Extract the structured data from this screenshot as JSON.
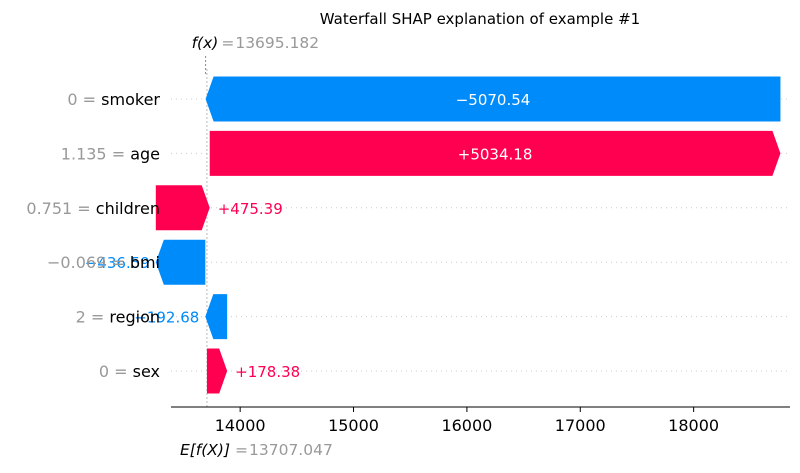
{
  "chart_data": {
    "type": "waterfall",
    "title": "Waterfall SHAP explanation of example #1",
    "fx_label": "f(x)",
    "fx_value": "13695.182",
    "base_label": "E[f(X)]",
    "base_value": "13707.047",
    "base": 13707.047,
    "output": 13695.182,
    "xlim": [
      13390,
      18850
    ],
    "xticks": [
      14000,
      15000,
      16000,
      17000,
      18000
    ],
    "xtick_labels": [
      "14000",
      "15000",
      "16000",
      "17000",
      "18000"
    ],
    "features": [
      {
        "name": "smoker",
        "value": "0",
        "contribution": -5070.54,
        "label": "−5070.54",
        "start": 18765.72,
        "label_inside": true
      },
      {
        "name": "age",
        "value": "1.135",
        "contribution": 5034.18,
        "label": "+5034.18",
        "start": 13731.54,
        "label_inside": true
      },
      {
        "name": "children",
        "value": "0.751",
        "contribution": 475.39,
        "label": "+475.39",
        "start": 13256.15,
        "label_inside": false
      },
      {
        "name": "bmi",
        "value": "−0.069",
        "contribution": -436.59,
        "label": "−436.59",
        "start": 13692.74,
        "label_inside": false
      },
      {
        "name": "region",
        "value": "2",
        "contribution": -192.68,
        "label": "−192.68",
        "start": 13885.42,
        "label_inside": false
      },
      {
        "name": "sex",
        "value": "0",
        "contribution": 178.38,
        "label": "+178.38",
        "start": 13707.04,
        "label_inside": false
      }
    ],
    "colors": {
      "positive": "#ff0051",
      "negative": "#008bfb",
      "value_text": "#999999",
      "grid": "#cccccc"
    }
  }
}
